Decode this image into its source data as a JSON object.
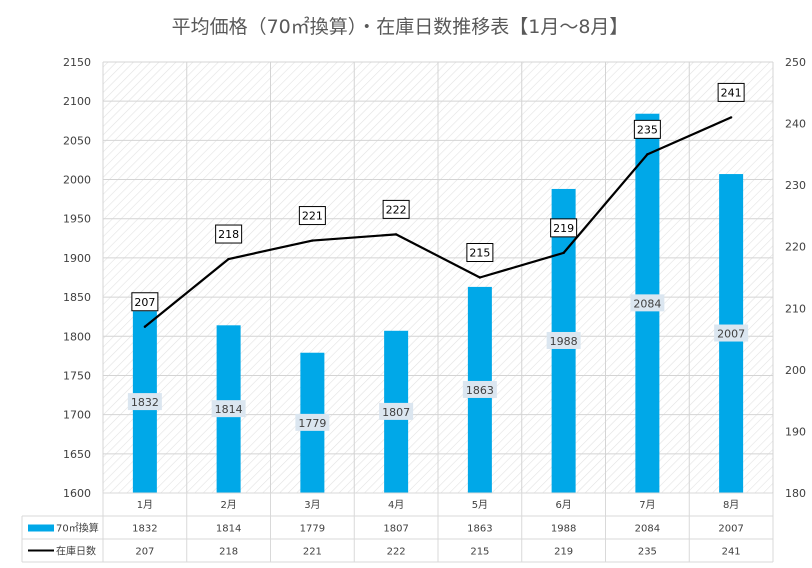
{
  "chart_data": {
    "type": "bar",
    "title": "平均価格（70㎡換算）・在庫日数推移表【1月～8月】",
    "categories": [
      "1月",
      "2月",
      "3月",
      "4月",
      "5月",
      "6月",
      "7月",
      "8月"
    ],
    "series": [
      {
        "name": "70㎡換算",
        "type": "bar",
        "axis": "left",
        "values": [
          1832,
          1814,
          1779,
          1807,
          1863,
          1988,
          2084,
          2007
        ]
      },
      {
        "name": "在庫日数",
        "type": "line",
        "axis": "right",
        "values": [
          207,
          218,
          221,
          222,
          215,
          219,
          235,
          241
        ]
      }
    ],
    "y_left": {
      "min": 1600,
      "max": 2150,
      "step": 50,
      "ticks": [
        "1600",
        "1650",
        "1700",
        "1750",
        "1800",
        "1850",
        "1900",
        "1950",
        "2000",
        "2050",
        "2100",
        "2150"
      ]
    },
    "y_right": {
      "min": 180,
      "max": 250,
      "step": 10,
      "ticks": [
        "180",
        "190",
        "200",
        "210",
        "220",
        "230",
        "240",
        "250"
      ]
    },
    "grid": true,
    "legend": "data-table-bottom"
  },
  "colors": {
    "bar": "#00a8e8",
    "line": "#000000",
    "grid": "#d4d4d4",
    "hatch": "#e2e2e2",
    "border": "#d9d9d9"
  }
}
